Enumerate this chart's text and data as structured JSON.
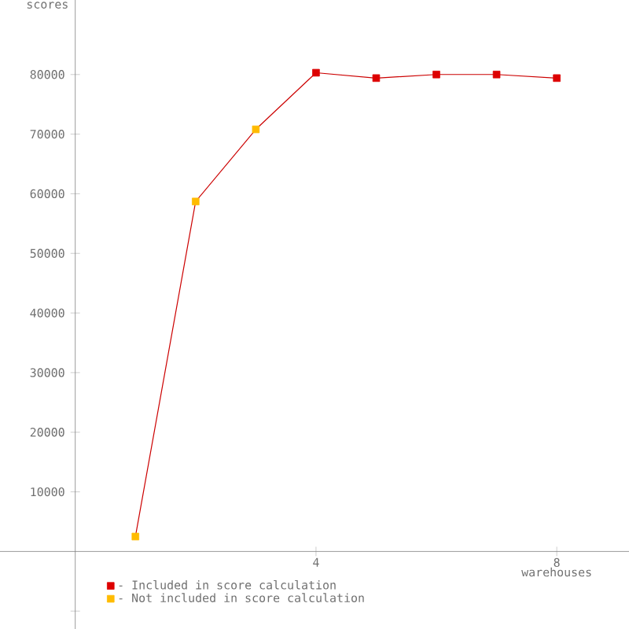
{
  "chart_data": {
    "type": "line",
    "xlabel": "warehouses",
    "ylabel": "scores",
    "xlim": [
      -1.25,
      9.2
    ],
    "ylim": [
      -13000,
      92500
    ],
    "xticks": [
      4,
      8
    ],
    "yticks": [
      {
        "value": -10000,
        "label": null
      },
      10000,
      20000,
      30000,
      40000,
      50000,
      60000,
      70000,
      80000
    ],
    "legend": "bottom left",
    "series": [
      {
        "color": "#cc0000",
        "marker": "none",
        "x": [
          1,
          2,
          3,
          4,
          5,
          6,
          7,
          8
        ],
        "values": [
          2500,
          58700,
          70800,
          80300,
          79400,
          80000,
          80000,
          79400
        ]
      },
      {
        "type": "scatter",
        "name": "- Included in score calculation",
        "color": "#dd0000",
        "marker": "square",
        "x": [
          4,
          5,
          6,
          7,
          8
        ],
        "values": [
          80300,
          79400,
          80000,
          80000,
          79400
        ]
      },
      {
        "type": "scatter",
        "name": "- Not included in score calculation",
        "color": "#ffbb00",
        "marker": "square",
        "x": [
          1,
          2,
          3
        ],
        "values": [
          2500,
          58700,
          70800
        ]
      }
    ]
  }
}
